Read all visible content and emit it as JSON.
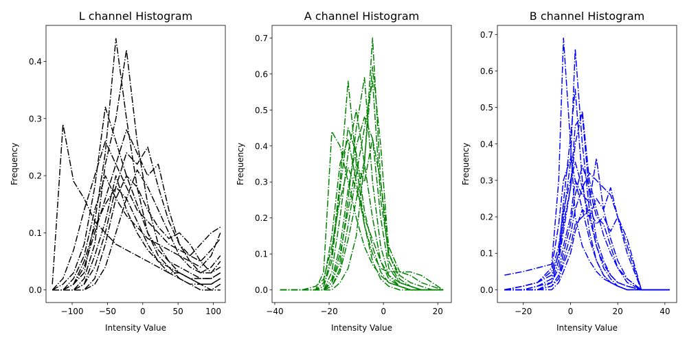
{
  "chart_data": [
    {
      "type": "line",
      "title": "L channel Histogram",
      "xlabel": "Intensity Value",
      "ylabel": "Frequency",
      "xlim": [
        -137,
        117
      ],
      "ylim": [
        -0.022,
        0.463
      ],
      "xticks": [
        -100,
        -50,
        0,
        50,
        100
      ],
      "xtick_labels": [
        "−100",
        "−50",
        "0",
        "50",
        "100"
      ],
      "yticks": [
        0.0,
        0.1,
        0.2,
        0.3,
        0.4
      ],
      "ytick_labels": [
        "0.0",
        "0.1",
        "0.2",
        "0.3",
        "0.4"
      ],
      "color": "#000000",
      "line_style": "dashdot",
      "x": [
        -128,
        -113,
        -98,
        -83,
        -68,
        -53,
        -38,
        -23,
        -8,
        7,
        22,
        37,
        52,
        67,
        82,
        97,
        110
      ],
      "series": [
        {
          "values": [
            0.01,
            0.29,
            0.19,
            0.16,
            0.12,
            0.1,
            0.08,
            0.07,
            0.06,
            0.05,
            0.04,
            0.03,
            0.03,
            0.02,
            0.02,
            0.02,
            0.03
          ]
        },
        {
          "values": [
            0.0,
            0.0,
            0.01,
            0.03,
            0.12,
            0.24,
            0.44,
            0.3,
            0.18,
            0.1,
            0.06,
            0.04,
            0.02,
            0.01,
            0.0,
            0.0,
            0.01
          ]
        },
        {
          "values": [
            0.0,
            0.0,
            0.0,
            0.02,
            0.08,
            0.22,
            0.3,
            0.42,
            0.26,
            0.15,
            0.08,
            0.05,
            0.03,
            0.02,
            0.01,
            0.01,
            0.02
          ]
        },
        {
          "values": [
            0.0,
            0.01,
            0.03,
            0.08,
            0.18,
            0.32,
            0.26,
            0.2,
            0.15,
            0.1,
            0.07,
            0.05,
            0.04,
            0.03,
            0.02,
            0.02,
            0.03
          ]
        },
        {
          "values": [
            0.0,
            0.0,
            0.01,
            0.04,
            0.1,
            0.16,
            0.22,
            0.28,
            0.24,
            0.2,
            0.22,
            0.14,
            0.08,
            0.05,
            0.03,
            0.04,
            0.06
          ]
        },
        {
          "values": [
            0.0,
            0.02,
            0.07,
            0.14,
            0.2,
            0.26,
            0.22,
            0.18,
            0.14,
            0.12,
            0.1,
            0.08,
            0.07,
            0.06,
            0.08,
            0.1,
            0.11
          ]
        },
        {
          "values": [
            0.0,
            0.0,
            0.0,
            0.01,
            0.04,
            0.1,
            0.18,
            0.24,
            0.22,
            0.25,
            0.18,
            0.12,
            0.08,
            0.06,
            0.05,
            0.07,
            0.09
          ]
        },
        {
          "values": [
            0.0,
            0.0,
            0.02,
            0.06,
            0.14,
            0.2,
            0.16,
            0.13,
            0.11,
            0.09,
            0.08,
            0.07,
            0.06,
            0.05,
            0.04,
            0.06,
            0.1
          ]
        },
        {
          "values": [
            0.0,
            0.0,
            0.0,
            0.0,
            0.02,
            0.08,
            0.16,
            0.2,
            0.18,
            0.14,
            0.11,
            0.09,
            0.1,
            0.08,
            0.05,
            0.03,
            0.05
          ]
        },
        {
          "values": [
            0.0,
            0.0,
            0.01,
            0.05,
            0.11,
            0.15,
            0.18,
            0.16,
            0.12,
            0.08,
            0.05,
            0.03,
            0.02,
            0.01,
            0.01,
            0.0,
            0.0
          ]
        },
        {
          "values": [
            0.0,
            0.0,
            0.0,
            0.01,
            0.06,
            0.12,
            0.2,
            0.14,
            0.1,
            0.07,
            0.05,
            0.04,
            0.03,
            0.02,
            0.01,
            0.01,
            0.02
          ]
        },
        {
          "values": [
            0.0,
            0.0,
            0.0,
            0.0,
            0.01,
            0.04,
            0.1,
            0.16,
            0.21,
            0.18,
            0.14,
            0.1,
            0.06,
            0.04,
            0.03,
            0.03,
            0.04
          ]
        }
      ]
    },
    {
      "type": "line",
      "title": "A channel Histogram",
      "xlabel": "Intensity Value",
      "ylabel": "Frequency",
      "xlim": [
        -41,
        25
      ],
      "ylim": [
        -0.035,
        0.735
      ],
      "xticks": [
        -40,
        -20,
        0,
        20
      ],
      "xtick_labels": [
        "−40",
        "−20",
        "0",
        "20"
      ],
      "yticks": [
        0.0,
        0.1,
        0.2,
        0.3,
        0.4,
        0.5,
        0.6,
        0.7
      ],
      "ytick_labels": [
        "0.0",
        "0.1",
        "0.2",
        "0.3",
        "0.4",
        "0.5",
        "0.6",
        "0.7"
      ],
      "color": "#008000",
      "line_style": "dashdot",
      "x": [
        -38,
        -30,
        -25,
        -22,
        -19,
        -16,
        -13,
        -10,
        -7,
        -4,
        -1,
        2,
        6,
        10,
        14,
        18,
        22
      ],
      "series": [
        {
          "values": [
            0.0,
            0.0,
            0.0,
            0.05,
            0.44,
            0.4,
            0.3,
            0.2,
            0.12,
            0.07,
            0.04,
            0.02,
            0.01,
            0.0,
            0.0,
            0.0,
            0.0
          ]
        },
        {
          "values": [
            0.0,
            0.0,
            0.0,
            0.01,
            0.1,
            0.3,
            0.58,
            0.35,
            0.18,
            0.08,
            0.03,
            0.01,
            0.0,
            0.0,
            0.0,
            0.0,
            0.0
          ]
        },
        {
          "values": [
            0.0,
            0.0,
            0.0,
            0.0,
            0.02,
            0.08,
            0.25,
            0.45,
            0.59,
            0.3,
            0.12,
            0.04,
            0.01,
            0.0,
            0.0,
            0.0,
            0.0
          ]
        },
        {
          "values": [
            0.0,
            0.0,
            0.0,
            0.0,
            0.0,
            0.02,
            0.06,
            0.15,
            0.35,
            0.7,
            0.3,
            0.08,
            0.02,
            0.01,
            0.0,
            0.0,
            0.0
          ]
        },
        {
          "values": [
            0.0,
            0.0,
            0.0,
            0.02,
            0.15,
            0.35,
            0.42,
            0.3,
            0.18,
            0.1,
            0.06,
            0.05,
            0.05,
            0.04,
            0.02,
            0.01,
            0.0
          ]
        },
        {
          "values": [
            0.0,
            0.0,
            0.0,
            0.0,
            0.05,
            0.2,
            0.38,
            0.5,
            0.35,
            0.2,
            0.08,
            0.03,
            0.01,
            0.0,
            0.0,
            0.0,
            0.0
          ]
        },
        {
          "values": [
            0.0,
            0.0,
            0.0,
            0.0,
            0.01,
            0.06,
            0.18,
            0.32,
            0.45,
            0.58,
            0.25,
            0.1,
            0.04,
            0.02,
            0.01,
            0.0,
            0.0
          ]
        },
        {
          "values": [
            0.0,
            0.0,
            0.0,
            0.01,
            0.08,
            0.28,
            0.45,
            0.38,
            0.22,
            0.12,
            0.05,
            0.02,
            0.01,
            0.0,
            0.0,
            0.0,
            0.0
          ]
        },
        {
          "values": [
            0.0,
            0.0,
            0.0,
            0.0,
            0.03,
            0.12,
            0.28,
            0.4,
            0.48,
            0.42,
            0.2,
            0.06,
            0.02,
            0.01,
            0.0,
            0.0,
            0.0
          ]
        },
        {
          "values": [
            0.0,
            0.0,
            0.0,
            0.0,
            0.02,
            0.1,
            0.22,
            0.35,
            0.3,
            0.42,
            0.3,
            0.12,
            0.05,
            0.05,
            0.04,
            0.02,
            0.0
          ]
        },
        {
          "values": [
            0.0,
            0.0,
            0.01,
            0.03,
            0.12,
            0.25,
            0.34,
            0.28,
            0.2,
            0.14,
            0.08,
            0.04,
            0.02,
            0.01,
            0.0,
            0.0,
            0.0
          ]
        },
        {
          "values": [
            0.0,
            0.0,
            0.0,
            0.0,
            0.01,
            0.05,
            0.14,
            0.25,
            0.36,
            0.62,
            0.4,
            0.1,
            0.03,
            0.01,
            0.0,
            0.0,
            0.0
          ]
        }
      ]
    },
    {
      "type": "line",
      "title": "B channel Histogram",
      "xlabel": "Intensity Value",
      "ylabel": "Frequency",
      "xlim": [
        -31,
        45
      ],
      "ylim": [
        -0.035,
        0.725
      ],
      "xticks": [
        -20,
        0,
        20,
        40
      ],
      "xtick_labels": [
        "−20",
        "0",
        "20",
        "40"
      ],
      "yticks": [
        0.0,
        0.1,
        0.2,
        0.3,
        0.4,
        0.5,
        0.6,
        0.7
      ],
      "ytick_labels": [
        "0.0",
        "0.1",
        "0.2",
        "0.3",
        "0.4",
        "0.5",
        "0.6",
        "0.7"
      ],
      "color": "#0000ff",
      "line_style": "dashdot",
      "x": [
        -28,
        -20,
        -14,
        -8,
        -5,
        -3,
        0,
        2,
        5,
        8,
        11,
        14,
        17,
        20,
        24,
        30,
        42
      ],
      "series": [
        {
          "values": [
            0.04,
            0.05,
            0.06,
            0.07,
            0.3,
            0.69,
            0.4,
            0.2,
            0.12,
            0.08,
            0.05,
            0.03,
            0.02,
            0.01,
            0.0,
            0.0,
            0.0
          ]
        },
        {
          "values": [
            0.0,
            0.0,
            0.01,
            0.02,
            0.08,
            0.2,
            0.35,
            0.66,
            0.4,
            0.22,
            0.12,
            0.06,
            0.03,
            0.01,
            0.0,
            0.0,
            0.0
          ]
        },
        {
          "values": [
            0.0,
            0.01,
            0.02,
            0.04,
            0.1,
            0.18,
            0.28,
            0.4,
            0.49,
            0.3,
            0.22,
            0.15,
            0.1,
            0.06,
            0.03,
            0.0,
            0.0
          ]
        },
        {
          "values": [
            0.0,
            0.0,
            0.0,
            0.01,
            0.03,
            0.08,
            0.15,
            0.22,
            0.28,
            0.32,
            0.3,
            0.28,
            0.26,
            0.2,
            0.12,
            0.0,
            0.0
          ]
        },
        {
          "values": [
            0.0,
            0.0,
            0.0,
            0.02,
            0.06,
            0.12,
            0.2,
            0.3,
            0.26,
            0.24,
            0.36,
            0.22,
            0.14,
            0.08,
            0.03,
            0.0,
            0.0
          ]
        },
        {
          "values": [
            0.0,
            0.0,
            0.01,
            0.03,
            0.1,
            0.24,
            0.42,
            0.55,
            0.3,
            0.16,
            0.08,
            0.04,
            0.02,
            0.01,
            0.0,
            0.0,
            0.0
          ]
        },
        {
          "values": [
            0.0,
            0.0,
            0.0,
            0.0,
            0.02,
            0.05,
            0.1,
            0.16,
            0.22,
            0.2,
            0.25,
            0.22,
            0.28,
            0.2,
            0.1,
            0.0,
            0.0
          ]
        },
        {
          "values": [
            0.0,
            0.01,
            0.02,
            0.06,
            0.18,
            0.3,
            0.36,
            0.3,
            0.22,
            0.14,
            0.08,
            0.04,
            0.02,
            0.01,
            0.0,
            0.0,
            0.0
          ]
        },
        {
          "values": [
            0.0,
            0.0,
            0.0,
            0.01,
            0.04,
            0.1,
            0.18,
            0.26,
            0.34,
            0.28,
            0.2,
            0.18,
            0.12,
            0.06,
            0.02,
            0.0,
            0.0
          ]
        },
        {
          "values": [
            0.0,
            0.0,
            0.01,
            0.02,
            0.08,
            0.16,
            0.28,
            0.45,
            0.48,
            0.26,
            0.14,
            0.08,
            0.04,
            0.02,
            0.01,
            0.0,
            0.0
          ]
        },
        {
          "values": [
            0.0,
            0.0,
            0.0,
            0.01,
            0.03,
            0.07,
            0.12,
            0.18,
            0.2,
            0.22,
            0.18,
            0.2,
            0.16,
            0.2,
            0.14,
            0.0,
            0.0
          ]
        },
        {
          "values": [
            0.0,
            0.01,
            0.02,
            0.05,
            0.12,
            0.22,
            0.3,
            0.35,
            0.28,
            0.2,
            0.12,
            0.07,
            0.04,
            0.02,
            0.01,
            0.0,
            0.0
          ]
        }
      ]
    }
  ]
}
